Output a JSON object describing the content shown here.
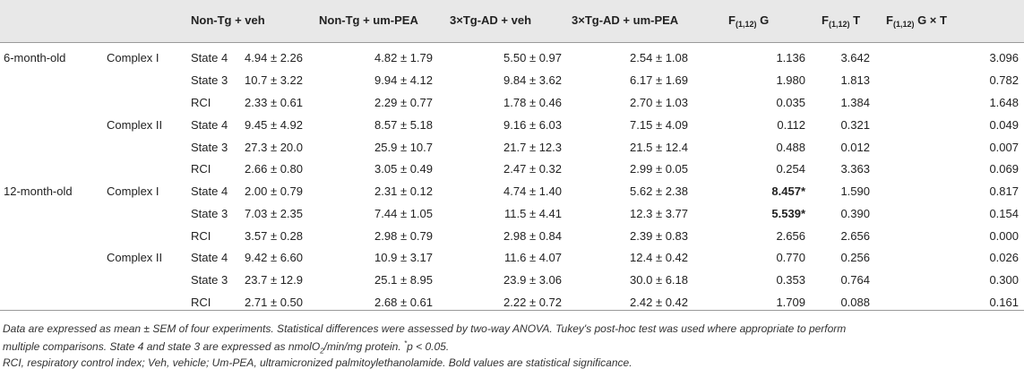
{
  "header": {
    "col1": "Non-Tg + veh",
    "col2": "Non-Tg + um-PEA",
    "col3": "3×Tg-AD + veh",
    "col4": "3×Tg-AD + um-PEA",
    "col5_main": "F",
    "col5_sub": "(1,12)",
    "col5_tail": " G",
    "col6_main": "F",
    "col6_sub": "(1,12)",
    "col6_tail": " T",
    "col7_main": "F",
    "col7_sub": "(1,12)",
    "col7_tail": " G × T"
  },
  "rows": [
    {
      "age": "6-month-old",
      "complex": "Complex I",
      "state": "State 4",
      "v1": "4.94 ± 2.26",
      "v2": "4.82 ± 1.79",
      "v3": "5.50 ± 0.97",
      "v4": "2.54 ± 1.08",
      "g": "1.136",
      "t": "3.642",
      "gt": "3.096",
      "t_bold": false
    },
    {
      "age": "",
      "complex": "",
      "state": "State 3",
      "v1": "10.7 ± 3.22",
      "v2": "9.94 ± 4.12",
      "v3": "9.84 ± 3.62",
      "v4": "6.17 ± 1.69",
      "g": "1.980",
      "t": "1.813",
      "gt": "0.782",
      "t_bold": false
    },
    {
      "age": "",
      "complex": "",
      "state": "RCI",
      "v1": "2.33 ± 0.61",
      "v2": "2.29 ± 0.77",
      "v3": "1.78 ± 0.46",
      "v4": "2.70 ± 1.03",
      "g": "0.035",
      "t": "1.384",
      "gt": "1.648",
      "t_bold": false
    },
    {
      "age": "",
      "complex": "Complex II",
      "state": "State 4",
      "v1": "9.45 ± 4.92",
      "v2": "8.57 ± 5.18",
      "v3": "9.16 ± 6.03",
      "v4": "7.15 ± 4.09",
      "g": "0.112",
      "t": "0.321",
      "gt": "0.049",
      "t_bold": false
    },
    {
      "age": "",
      "complex": "",
      "state": "State 3",
      "v1": "27.3 ± 20.0",
      "v2": "25.9 ± 10.7",
      "v3": "21.7 ± 12.3",
      "v4": "21.5 ± 12.4",
      "g": "0.488",
      "t": "0.012",
      "gt": "0.007",
      "t_bold": false
    },
    {
      "age": "",
      "complex": "",
      "state": "RCI",
      "v1": "2.66 ± 0.80",
      "v2": "3.05 ± 0.49",
      "v3": "2.47 ± 0.32",
      "v4": "2.99 ± 0.05",
      "g": "0.254",
      "t": "3.363",
      "gt": "0.069",
      "t_bold": false
    },
    {
      "age": "12-month-old",
      "complex": "Complex I",
      "state": "State 4",
      "v1": "2.00 ± 0.79",
      "v2": "2.31 ± 0.12",
      "v3": "4.74 ± 1.40",
      "v4": "5.62 ± 2.38",
      "g": "8.457*",
      "t": "1.590",
      "gt": "0.817",
      "g_bold": true
    },
    {
      "age": "",
      "complex": "",
      "state": "State 3",
      "v1": "7.03 ± 2.35",
      "v2": "7.44 ± 1.05",
      "v3": "11.5 ± 4.41",
      "v4": "12.3 ± 3.77",
      "g": "5.539*",
      "t": "0.390",
      "gt": "0.154",
      "g_bold": true
    },
    {
      "age": "",
      "complex": "",
      "state": "RCI",
      "v1": "3.57 ± 0.28",
      "v2": "2.98 ± 0.79",
      "v3": "2.98 ± 0.84",
      "v4": "2.39 ± 0.83",
      "g": "2.656",
      "t": "2.656",
      "gt": "0.000"
    },
    {
      "age": "",
      "complex": "Complex II",
      "state": "State 4",
      "v1": "9.42 ± 6.60",
      "v2": "10.9 ± 3.17",
      "v3": "11.6 ± 4.07",
      "v4": "12.4 ± 0.42",
      "g": "0.770",
      "t": "0.256",
      "gt": "0.026"
    },
    {
      "age": "",
      "complex": "",
      "state": "State 3",
      "v1": "23.7 ± 12.9",
      "v2": "25.1 ± 8.95",
      "v3": "23.9 ± 3.06",
      "v4": "30.0 ± 6.18",
      "g": "0.353",
      "t": "0.764",
      "gt": "0.300"
    },
    {
      "age": "",
      "complex": "",
      "state": "RCI",
      "v1": "2.71 ± 0.50",
      "v2": "2.68 ± 0.61",
      "v3": "2.22 ± 0.72",
      "v4": "2.42 ± 0.42",
      "g": "1.709",
      "t": "0.088",
      "gt": "0.161"
    }
  ],
  "footnotes": {
    "line1": "Data are expressed as mean ± SEM of four experiments. Statistical differences were assessed by two-way ANOVA. Tukey's post-hoc test was used where appropriate to perform",
    "line2_a": "multiple comparisons. State 4 and state 3 are expressed as nmolO",
    "line2_sub": "2",
    "line2_b": "/min/mg protein. ",
    "line2_sup": "*",
    "line2_c": "p < 0.05.",
    "line3": "RCI, respiratory control index; Veh, vehicle; Um-PEA, ultramicronized palmitoylethanolamide. Bold values are statistical significance."
  }
}
